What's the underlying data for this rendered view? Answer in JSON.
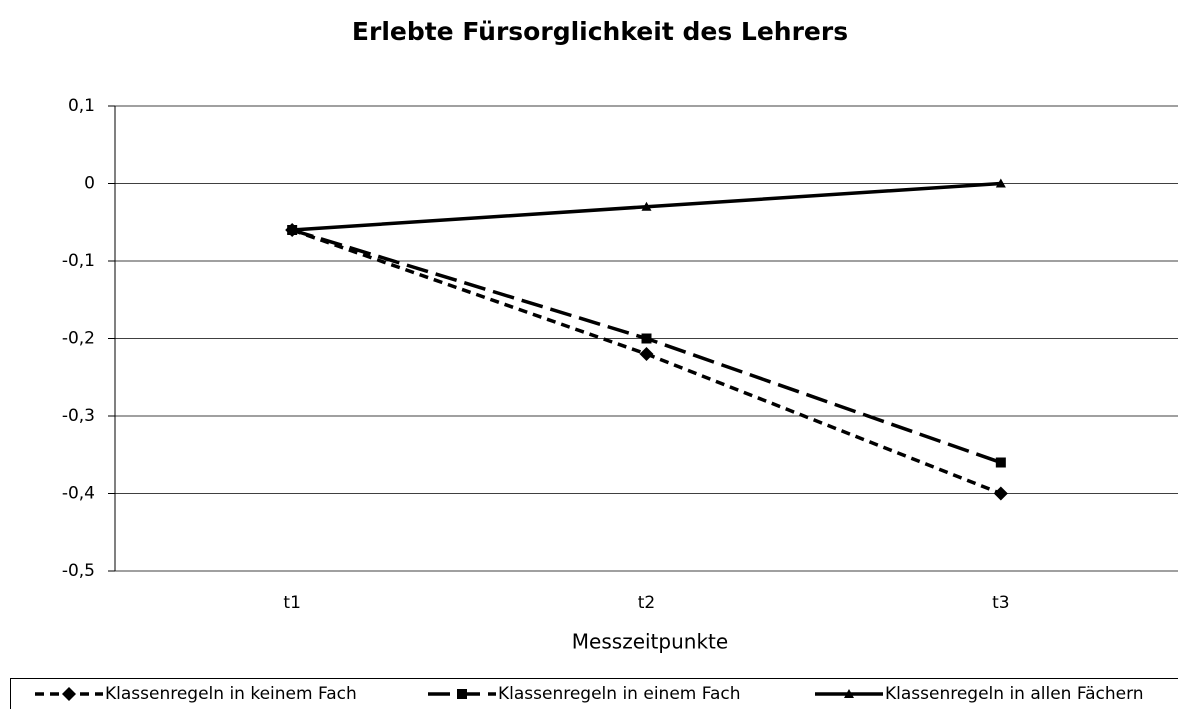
{
  "chart_data": {
    "type": "line",
    "title": "Erlebte Fürsorglichkeit des Lehrers",
    "x_label": "Messzeitpunkte",
    "categories": [
      "t1",
      "t2",
      "t3"
    ],
    "series": [
      {
        "name": "Klassenregeln in keinem Fach",
        "color": "#000000",
        "line_style": "dashed",
        "marker": "diamond",
        "values": [
          -0.06,
          -0.22,
          -0.4
        ]
      },
      {
        "name": "Klassenregeln in einem Fach",
        "color": "#000000",
        "line_style": "long-dashed",
        "marker": "square",
        "values": [
          -0.06,
          -0.2,
          -0.36
        ]
      },
      {
        "name": "Klassenregeln in allen Fächern",
        "color": "#000000",
        "line_style": "solid",
        "marker": "triangle",
        "values": [
          -0.06,
          -0.03,
          0.0
        ]
      }
    ],
    "ylim": [
      -0.5,
      0.1
    ],
    "yticks": [
      {
        "value": -0.5,
        "label": "-0,5"
      },
      {
        "value": -0.4,
        "label": "-0,4"
      },
      {
        "value": -0.3,
        "label": "-0,3"
      },
      {
        "value": -0.2,
        "label": "-0,2"
      },
      {
        "value": -0.1,
        "label": "-0,1"
      },
      0,
      {
        "value": 0.1,
        "label": "0,1"
      }
    ],
    "grid": true,
    "legend": "bottom"
  }
}
